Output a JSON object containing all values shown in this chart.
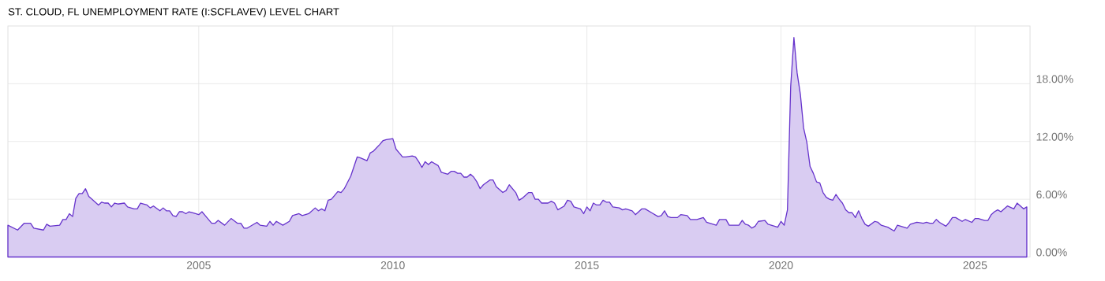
{
  "chart_data": {
    "type": "area",
    "title": "ST. CLOUD, FL UNEMPLOYMENT RATE (I:SCFLAVEV) LEVEL CHART",
    "xlim": [
      "2000-02",
      "2026-06"
    ],
    "xticks": [
      "2005",
      "2010",
      "2015",
      "2020",
      "2025"
    ],
    "ylim": [
      0,
      24
    ],
    "yticks": [
      {
        "value": 0,
        "label": "0.00%"
      },
      {
        "value": 6,
        "label": "6.00%"
      },
      {
        "value": 12,
        "label": "12.00%"
      },
      {
        "value": 18,
        "label": "18.00%"
      }
    ],
    "grid": true,
    "series": [
      {
        "color": "#6633cc",
        "x": [
          "2000-02",
          "2000-05",
          "2000-07",
          "2000-09",
          "2000-10",
          "2001-01",
          "2001-02",
          "2001-03",
          "2001-06",
          "2001-07",
          "2001-08",
          "2001-09",
          "2001-10",
          "2001-11",
          "2001-12",
          "2002-01",
          "2002-02",
          "2002-03",
          "2002-06",
          "2002-07",
          "2002-08",
          "2002-09",
          "2002-10",
          "2002-11",
          "2002-12",
          "2003-02",
          "2003-03",
          "2003-05",
          "2003-06",
          "2003-07",
          "2003-09",
          "2003-10",
          "2003-11",
          "2004-01",
          "2004-02",
          "2004-03",
          "2004-04",
          "2004-05",
          "2004-06",
          "2004-07",
          "2004-08",
          "2004-09",
          "2004-10",
          "2004-11",
          "2005-01",
          "2005-02",
          "2005-03",
          "2005-05",
          "2005-06",
          "2005-07",
          "2005-09",
          "2005-11",
          "2006-01",
          "2006-02",
          "2006-03",
          "2006-04",
          "2006-07",
          "2006-08",
          "2006-10",
          "2006-11",
          "2006-12",
          "2007-01",
          "2007-03",
          "2007-05",
          "2007-06",
          "2007-08",
          "2007-09",
          "2007-11",
          "2008-01",
          "2008-02",
          "2008-03",
          "2008-04",
          "2008-05",
          "2008-06",
          "2008-08",
          "2008-09",
          "2008-10",
          "2008-12",
          "2009-02",
          "2009-03",
          "2009-05",
          "2009-06",
          "2009-07",
          "2009-09",
          "2009-10",
          "2009-11",
          "2010-01",
          "2010-02",
          "2010-03",
          "2010-04",
          "2010-05",
          "2010-07",
          "2010-08",
          "2010-09",
          "2010-10",
          "2010-11",
          "2010-12",
          "2011-01",
          "2011-03",
          "2011-04",
          "2011-06",
          "2011-07",
          "2011-08",
          "2011-09",
          "2011-10",
          "2011-11",
          "2011-12",
          "2012-01",
          "2012-02",
          "2012-03",
          "2012-04",
          "2012-05",
          "2012-07",
          "2012-08",
          "2012-09",
          "2012-11",
          "2012-12",
          "2013-01",
          "2013-03",
          "2013-04",
          "2013-05",
          "2013-07",
          "2013-08",
          "2013-09",
          "2013-10",
          "2013-11",
          "2014-01",
          "2014-02",
          "2014-03",
          "2014-04",
          "2014-06",
          "2014-07",
          "2014-08",
          "2014-09",
          "2014-11",
          "2014-12",
          "2015-01",
          "2015-02",
          "2015-03",
          "2015-04",
          "2015-05",
          "2015-06",
          "2015-07",
          "2015-08",
          "2015-09",
          "2015-11",
          "2015-12",
          "2016-01",
          "2016-03",
          "2016-04",
          "2016-06",
          "2016-07",
          "2016-09",
          "2016-11",
          "2016-12",
          "2017-01",
          "2017-02",
          "2017-03",
          "2017-05",
          "2017-06",
          "2017-08",
          "2017-09",
          "2017-11",
          "2018-01",
          "2018-02",
          "2018-05",
          "2018-06",
          "2018-08",
          "2018-09",
          "2018-12",
          "2019-01",
          "2019-02",
          "2019-03",
          "2019-04",
          "2019-05",
          "2019-06",
          "2019-08",
          "2019-09",
          "2019-10",
          "2019-12",
          "2020-01",
          "2020-02",
          "2020-03",
          "2020-04",
          "2020-05",
          "2020-06",
          "2020-07",
          "2020-08",
          "2020-09",
          "2020-10",
          "2020-11",
          "2020-12",
          "2021-01",
          "2021-02",
          "2021-03",
          "2021-04",
          "2021-05",
          "2021-06",
          "2021-07",
          "2021-08",
          "2021-09",
          "2021-10",
          "2021-11",
          "2021-12",
          "2022-01",
          "2022-02",
          "2022-03",
          "2022-04",
          "2022-06",
          "2022-07",
          "2022-08",
          "2022-10",
          "2022-12",
          "2023-01",
          "2023-02",
          "2023-04",
          "2023-05",
          "2023-07",
          "2023-09",
          "2023-10",
          "2023-11",
          "2023-12",
          "2024-01",
          "2024-02",
          "2024-04",
          "2024-05",
          "2024-06",
          "2024-07",
          "2024-09",
          "2024-10",
          "2024-12",
          "2025-01",
          "2025-02",
          "2025-04",
          "2025-05",
          "2025-06",
          "2025-07",
          "2025-08",
          "2025-09",
          "2025-11",
          "2026-01",
          "2026-02",
          "2026-04",
          "2026-05"
        ],
        "values": [
          3.3,
          2.8,
          3.5,
          3.5,
          3.0,
          2.8,
          3.4,
          3.2,
          3.3,
          3.9,
          3.9,
          4.5,
          4.2,
          6.1,
          6.6,
          6.6,
          7.1,
          6.3,
          5.4,
          5.7,
          5.6,
          5.6,
          5.2,
          5.6,
          5.5,
          5.6,
          5.2,
          5.0,
          5.0,
          5.6,
          5.4,
          5.1,
          5.3,
          4.8,
          5.1,
          4.8,
          4.8,
          4.3,
          4.2,
          4.7,
          4.7,
          4.5,
          4.7,
          4.6,
          4.4,
          4.7,
          4.3,
          3.5,
          3.5,
          3.8,
          3.3,
          4.0,
          3.5,
          3.5,
          3.0,
          3.0,
          3.6,
          3.3,
          3.2,
          3.7,
          3.3,
          3.7,
          3.3,
          3.7,
          4.3,
          4.5,
          4.3,
          4.5,
          5.1,
          4.8,
          5.0,
          4.8,
          5.9,
          6.0,
          6.8,
          6.7,
          7.1,
          8.4,
          10.4,
          10.3,
          10.0,
          10.8,
          11.0,
          11.7,
          12.1,
          12.2,
          12.3,
          11.2,
          10.8,
          10.4,
          10.4,
          10.5,
          10.4,
          9.9,
          9.3,
          9.9,
          9.6,
          9.9,
          9.5,
          8.8,
          8.6,
          8.9,
          8.9,
          8.7,
          8.7,
          8.3,
          8.3,
          8.6,
          8.3,
          7.8,
          7.1,
          7.5,
          8.0,
          8.0,
          7.3,
          6.7,
          6.9,
          7.5,
          6.7,
          5.9,
          6.1,
          6.7,
          6.7,
          6.0,
          6.0,
          5.6,
          5.6,
          5.8,
          5.6,
          4.9,
          5.3,
          5.9,
          5.8,
          5.2,
          5.0,
          4.5,
          5.2,
          4.8,
          5.6,
          5.4,
          5.4,
          5.9,
          5.7,
          5.7,
          5.2,
          5.1,
          4.9,
          5.0,
          4.8,
          4.4,
          5.0,
          5.0,
          4.6,
          4.2,
          4.3,
          4.8,
          4.2,
          4.1,
          4.1,
          4.4,
          4.3,
          3.9,
          3.9,
          4.1,
          3.6,
          3.3,
          3.9,
          3.9,
          3.3,
          3.3,
          3.8,
          3.4,
          3.3,
          3.0,
          3.2,
          3.7,
          3.8,
          3.4,
          3.3,
          3.1,
          3.7,
          3.3,
          4.9,
          17.7,
          22.8,
          19.1,
          16.9,
          13.4,
          11.9,
          9.4,
          8.7,
          7.8,
          7.7,
          6.7,
          6.2,
          6.0,
          5.9,
          6.5,
          6.0,
          5.6,
          4.9,
          4.6,
          4.6,
          4.1,
          4.8,
          4.0,
          3.4,
          3.2,
          3.7,
          3.6,
          3.3,
          3.1,
          2.7,
          3.3,
          3.2,
          3.0,
          3.4,
          3.6,
          3.5,
          3.6,
          3.5,
          3.5,
          3.9,
          3.6,
          3.2,
          3.6,
          4.1,
          4.1,
          3.7,
          3.9,
          3.6,
          4.0,
          4.0,
          3.8,
          3.8,
          4.4,
          4.7,
          4.9,
          4.7,
          5.3,
          5.0,
          5.6,
          5.0,
          5.2
        ]
      }
    ]
  }
}
